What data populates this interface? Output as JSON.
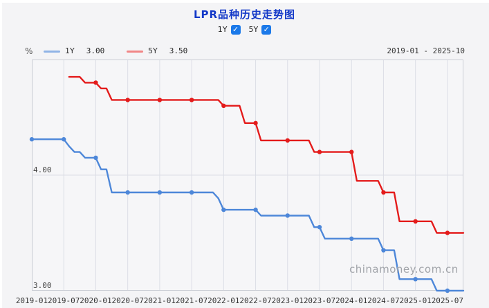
{
  "header": {
    "title": "LPR品种历史走势图",
    "toggles": [
      {
        "label": "1Y",
        "checked": true,
        "check_glyph": "✓"
      },
      {
        "label": "5Y",
        "checked": true,
        "check_glyph": "✓"
      }
    ]
  },
  "legend": {
    "unit": "%",
    "items": [
      {
        "name": "1Y",
        "value": "3.00",
        "swatch_color": "#8fb3e6"
      },
      {
        "name": "5Y",
        "value": "3.50",
        "swatch_color": "#f18585"
      }
    ],
    "date_range": "2019-01 - 2025-10"
  },
  "watermark": "chinamoney.com.cn",
  "colors": {
    "panel_bg": "#f4f4f6",
    "plot_bg": "#f6f6f8",
    "grid": "#dcdee6",
    "border": "#c9ccd4",
    "title_blue": "#1238c8",
    "checkbox_blue": "#1b79e9",
    "series_1y": "#4d87d9",
    "series_5y": "#e41b1b"
  },
  "chart_data": {
    "type": "line",
    "title": "LPR品种历史走势图",
    "x_start": "2019-01",
    "x_end": "2025-10",
    "months_total": 81,
    "marker_interval_months": 6,
    "x_tick_labels": [
      "2019-01",
      "2019-07",
      "2020-01",
      "2020-07",
      "2021-01",
      "2021-07",
      "2022-01",
      "2022-07",
      "2023-01",
      "2023-07",
      "2024-01",
      "2024-07",
      "2025-01",
      "2025-07"
    ],
    "y_tick_labels": [
      {
        "label": "4.00",
        "value": 4.0
      },
      {
        "label": "3.00",
        "value": 3.0
      }
    ],
    "ylim": [
      3.0,
      5.0
    ],
    "ylabel": "%",
    "grid": "vertical-every-6-months, horizontal-at-4.00",
    "legend_position": "top-left",
    "series": [
      {
        "name": "1Y",
        "color": "#4d87d9",
        "latest_value": "3.00",
        "start_month": 0,
        "values": [
          4.31,
          4.31,
          4.31,
          4.31,
          4.31,
          4.31,
          4.31,
          4.25,
          4.2,
          4.2,
          4.15,
          4.15,
          4.15,
          4.05,
          4.05,
          3.85,
          3.85,
          3.85,
          3.85,
          3.85,
          3.85,
          3.85,
          3.85,
          3.85,
          3.85,
          3.85,
          3.85,
          3.85,
          3.85,
          3.85,
          3.85,
          3.85,
          3.85,
          3.85,
          3.85,
          3.8,
          3.7,
          3.7,
          3.7,
          3.7,
          3.7,
          3.7,
          3.7,
          3.65,
          3.65,
          3.65,
          3.65,
          3.65,
          3.65,
          3.65,
          3.65,
          3.65,
          3.65,
          3.55,
          3.55,
          3.45,
          3.45,
          3.45,
          3.45,
          3.45,
          3.45,
          3.45,
          3.45,
          3.45,
          3.45,
          3.45,
          3.35,
          3.35,
          3.35,
          3.1,
          3.1,
          3.1,
          3.1,
          3.1,
          3.1,
          3.1,
          3.0,
          3.0,
          3.0,
          3.0,
          3.0,
          3.0
        ]
      },
      {
        "name": "5Y",
        "color": "#e41b1b",
        "latest_value": "3.50",
        "start_month": 7,
        "values": [
          4.85,
          4.85,
          4.85,
          4.8,
          4.8,
          4.8,
          4.75,
          4.75,
          4.65,
          4.65,
          4.65,
          4.65,
          4.65,
          4.65,
          4.65,
          4.65,
          4.65,
          4.65,
          4.65,
          4.65,
          4.65,
          4.65,
          4.65,
          4.65,
          4.65,
          4.65,
          4.65,
          4.65,
          4.65,
          4.6,
          4.6,
          4.6,
          4.6,
          4.45,
          4.45,
          4.45,
          4.3,
          4.3,
          4.3,
          4.3,
          4.3,
          4.3,
          4.3,
          4.3,
          4.3,
          4.3,
          4.2,
          4.2,
          4.2,
          4.2,
          4.2,
          4.2,
          4.2,
          4.2,
          3.95,
          3.95,
          3.95,
          3.95,
          3.95,
          3.85,
          3.85,
          3.85,
          3.6,
          3.6,
          3.6,
          3.6,
          3.6,
          3.6,
          3.6,
          3.5,
          3.5,
          3.5,
          3.5,
          3.5,
          3.5
        ]
      }
    ]
  }
}
